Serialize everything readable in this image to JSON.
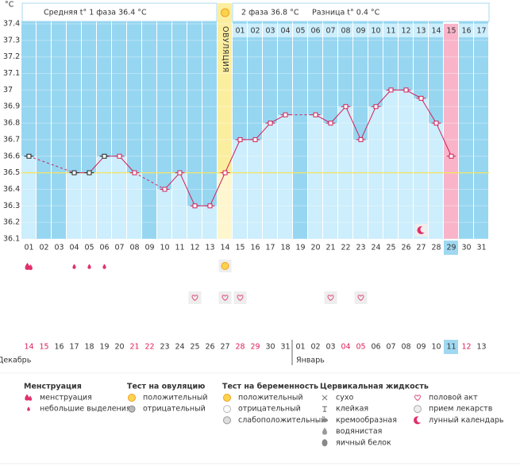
{
  "chart_data": {
    "type": "line",
    "y_label": "°C",
    "phase1_label": "Средняя t° 1 фаза 36.4 °C",
    "ovulation_label": "ОВУЛЯЦИЯ",
    "phase2_label": "2 фаза 36.8 °C",
    "difference_label": "Разница t° 0.4 °C",
    "categories": [
      "01",
      "02",
      "03",
      "04",
      "05",
      "06",
      "07",
      "08",
      "09",
      "10",
      "11",
      "12",
      "13",
      "14",
      "15",
      "16",
      "17",
      "18",
      "19",
      "20",
      "21",
      "22",
      "23",
      "24",
      "25",
      "26",
      "27",
      "28",
      "29",
      "30",
      "31"
    ],
    "values": [
      36.6,
      null,
      null,
      36.5,
      36.5,
      36.6,
      36.6,
      36.5,
      null,
      36.4,
      36.5,
      36.3,
      36.3,
      36.5,
      36.7,
      36.7,
      36.8,
      36.85,
      null,
      36.85,
      36.8,
      36.9,
      36.7,
      36.9,
      37,
      37,
      36.95,
      36.8,
      36.6,
      null,
      null
    ],
    "color": "#d0205a",
    "ylim": [
      36.1,
      37.4
    ],
    "yticks": [
      36.1,
      36.2,
      36.3,
      36.4,
      36.5,
      36.6,
      36.7,
      36.8,
      36.9,
      37,
      37.1,
      37.2,
      37.3,
      37.4
    ],
    "grid": true,
    "coverline": 36.5,
    "ovulation_day": "14",
    "highlight_day": "29",
    "phase2_days": [
      "01",
      "02",
      "03",
      "04",
      "05",
      "06",
      "07",
      "08",
      "09",
      "10",
      "11",
      "12",
      "13",
      "14",
      "15",
      "16",
      "17"
    ],
    "dates": [
      "14",
      "15",
      "16",
      "17",
      "18",
      "19",
      "20",
      "21",
      "22",
      "23",
      "24",
      "25",
      "26",
      "27",
      "28",
      "29",
      "30",
      "31",
      "01",
      "02",
      "03",
      "04",
      "05",
      "06",
      "07",
      "08",
      "09",
      "10",
      "11",
      "12",
      "13"
    ],
    "weekend": [
      true,
      true,
      false,
      false,
      false,
      false,
      false,
      true,
      true,
      false,
      false,
      false,
      false,
      false,
      true,
      true,
      false,
      false,
      false,
      false,
      false,
      true,
      true,
      false,
      false,
      false,
      false,
      false,
      false,
      true,
      false
    ],
    "months": [
      {
        "label": "Декабрь",
        "day": "01"
      },
      {
        "label": "Январь",
        "day": "19"
      }
    ],
    "menstruation": [
      "01"
    ],
    "spotting": [
      "04",
      "05",
      "06"
    ],
    "ovulation_test_positive": [
      "14"
    ],
    "intercourse": [
      "12",
      "14",
      "15",
      "21",
      "23"
    ],
    "lunar": [
      "27"
    ]
  },
  "legend": {
    "groups": [
      {
        "title": "Менструация",
        "items": [
          "менструация",
          "небольшие выделения"
        ]
      },
      {
        "title": "Тест на овуляцию",
        "items": [
          "положительный",
          "отрицательный"
        ]
      },
      {
        "title": "Тест на беременность",
        "items": [
          "положительный",
          "отрицательный",
          "слабоположительный"
        ]
      },
      {
        "title": "Цервикальная жидкость",
        "items": [
          "сухо",
          "клейкая",
          "кремообразная",
          "водянистая",
          "яичный белок"
        ]
      },
      {
        "items": [
          "половой акт",
          "прием лекарств",
          "лунный календарь"
        ]
      }
    ]
  }
}
